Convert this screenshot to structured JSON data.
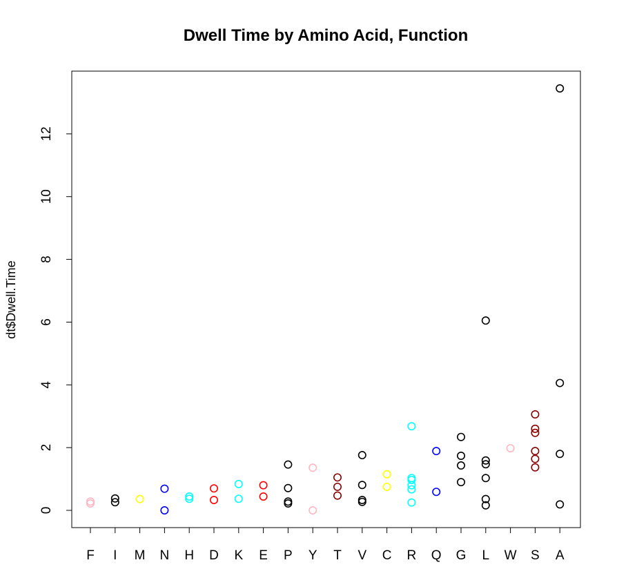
{
  "chart_data": {
    "type": "scatter",
    "title": "Dwell Time by Amino Acid, Function",
    "xlabel": "",
    "ylabel": "dt$Dwell.Time",
    "categories": [
      "F",
      "I",
      "M",
      "N",
      "H",
      "D",
      "K",
      "E",
      "P",
      "Y",
      "T",
      "V",
      "C",
      "R",
      "Q",
      "G",
      "L",
      "W",
      "S",
      "A"
    ],
    "ylim": [
      -0.55,
      14.0
    ],
    "yticks": [
      0,
      2,
      4,
      6,
      8,
      10,
      12
    ],
    "grid": false,
    "legend": "none",
    "points": [
      {
        "x": "F",
        "y": 0.28,
        "color": "#ffb6c1"
      },
      {
        "x": "F",
        "y": 0.22,
        "color": "#ffb6c1"
      },
      {
        "x": "I",
        "y": 0.38,
        "color": "#000000"
      },
      {
        "x": "I",
        "y": 0.26,
        "color": "#000000"
      },
      {
        "x": "M",
        "y": 0.36,
        "color": "#ffff00"
      },
      {
        "x": "N",
        "y": 0.69,
        "color": "#0000ff"
      },
      {
        "x": "N",
        "y": 0.0,
        "color": "#0000ff"
      },
      {
        "x": "H",
        "y": 0.44,
        "color": "#00ffff"
      },
      {
        "x": "H",
        "y": 0.37,
        "color": "#00ffff"
      },
      {
        "x": "D",
        "y": 0.7,
        "color": "#ff0000"
      },
      {
        "x": "D",
        "y": 0.33,
        "color": "#ff0000"
      },
      {
        "x": "K",
        "y": 0.84,
        "color": "#00ffff"
      },
      {
        "x": "K",
        "y": 0.37,
        "color": "#00ffff"
      },
      {
        "x": "E",
        "y": 0.8,
        "color": "#ff0000"
      },
      {
        "x": "E",
        "y": 0.44,
        "color": "#ff0000"
      },
      {
        "x": "P",
        "y": 1.46,
        "color": "#000000"
      },
      {
        "x": "P",
        "y": 0.71,
        "color": "#000000"
      },
      {
        "x": "P",
        "y": 0.28,
        "color": "#000000"
      },
      {
        "x": "P",
        "y": 0.22,
        "color": "#000000"
      },
      {
        "x": "Y",
        "y": 1.36,
        "color": "#ffb6c1"
      },
      {
        "x": "Y",
        "y": 0.0,
        "color": "#ffb6c1"
      },
      {
        "x": "T",
        "y": 1.05,
        "color": "#8b0000"
      },
      {
        "x": "T",
        "y": 0.75,
        "color": "#8b0000"
      },
      {
        "x": "T",
        "y": 0.47,
        "color": "#8b0000"
      },
      {
        "x": "V",
        "y": 1.76,
        "color": "#000000"
      },
      {
        "x": "V",
        "y": 0.81,
        "color": "#000000"
      },
      {
        "x": "V",
        "y": 0.33,
        "color": "#000000"
      },
      {
        "x": "V",
        "y": 0.27,
        "color": "#000000"
      },
      {
        "x": "C",
        "y": 1.15,
        "color": "#ffff00"
      },
      {
        "x": "C",
        "y": 0.75,
        "color": "#ffff00"
      },
      {
        "x": "R",
        "y": 2.68,
        "color": "#00ffff"
      },
      {
        "x": "R",
        "y": 1.03,
        "color": "#00ffff"
      },
      {
        "x": "R",
        "y": 0.97,
        "color": "#00ffff"
      },
      {
        "x": "R",
        "y": 0.8,
        "color": "#00ffff"
      },
      {
        "x": "R",
        "y": 0.67,
        "color": "#00ffff"
      },
      {
        "x": "R",
        "y": 0.25,
        "color": "#00ffff"
      },
      {
        "x": "Q",
        "y": 1.89,
        "color": "#0000ff"
      },
      {
        "x": "Q",
        "y": 0.59,
        "color": "#0000ff"
      },
      {
        "x": "G",
        "y": 2.34,
        "color": "#000000"
      },
      {
        "x": "G",
        "y": 1.74,
        "color": "#000000"
      },
      {
        "x": "G",
        "y": 1.43,
        "color": "#000000"
      },
      {
        "x": "G",
        "y": 0.9,
        "color": "#000000"
      },
      {
        "x": "L",
        "y": 6.05,
        "color": "#000000"
      },
      {
        "x": "L",
        "y": 1.59,
        "color": "#000000"
      },
      {
        "x": "L",
        "y": 1.47,
        "color": "#000000"
      },
      {
        "x": "L",
        "y": 1.03,
        "color": "#000000"
      },
      {
        "x": "L",
        "y": 0.36,
        "color": "#000000"
      },
      {
        "x": "L",
        "y": 0.16,
        "color": "#000000"
      },
      {
        "x": "W",
        "y": 1.98,
        "color": "#ffb6c1"
      },
      {
        "x": "S",
        "y": 3.06,
        "color": "#8b0000"
      },
      {
        "x": "S",
        "y": 2.6,
        "color": "#8b0000"
      },
      {
        "x": "S",
        "y": 2.47,
        "color": "#8b0000"
      },
      {
        "x": "S",
        "y": 1.89,
        "color": "#8b0000"
      },
      {
        "x": "S",
        "y": 1.64,
        "color": "#8b0000"
      },
      {
        "x": "S",
        "y": 1.37,
        "color": "#8b0000"
      },
      {
        "x": "A",
        "y": 13.45,
        "color": "#000000"
      },
      {
        "x": "A",
        "y": 4.06,
        "color": "#000000"
      },
      {
        "x": "A",
        "y": 1.8,
        "color": "#000000"
      },
      {
        "x": "A",
        "y": 0.19,
        "color": "#000000"
      }
    ]
  }
}
